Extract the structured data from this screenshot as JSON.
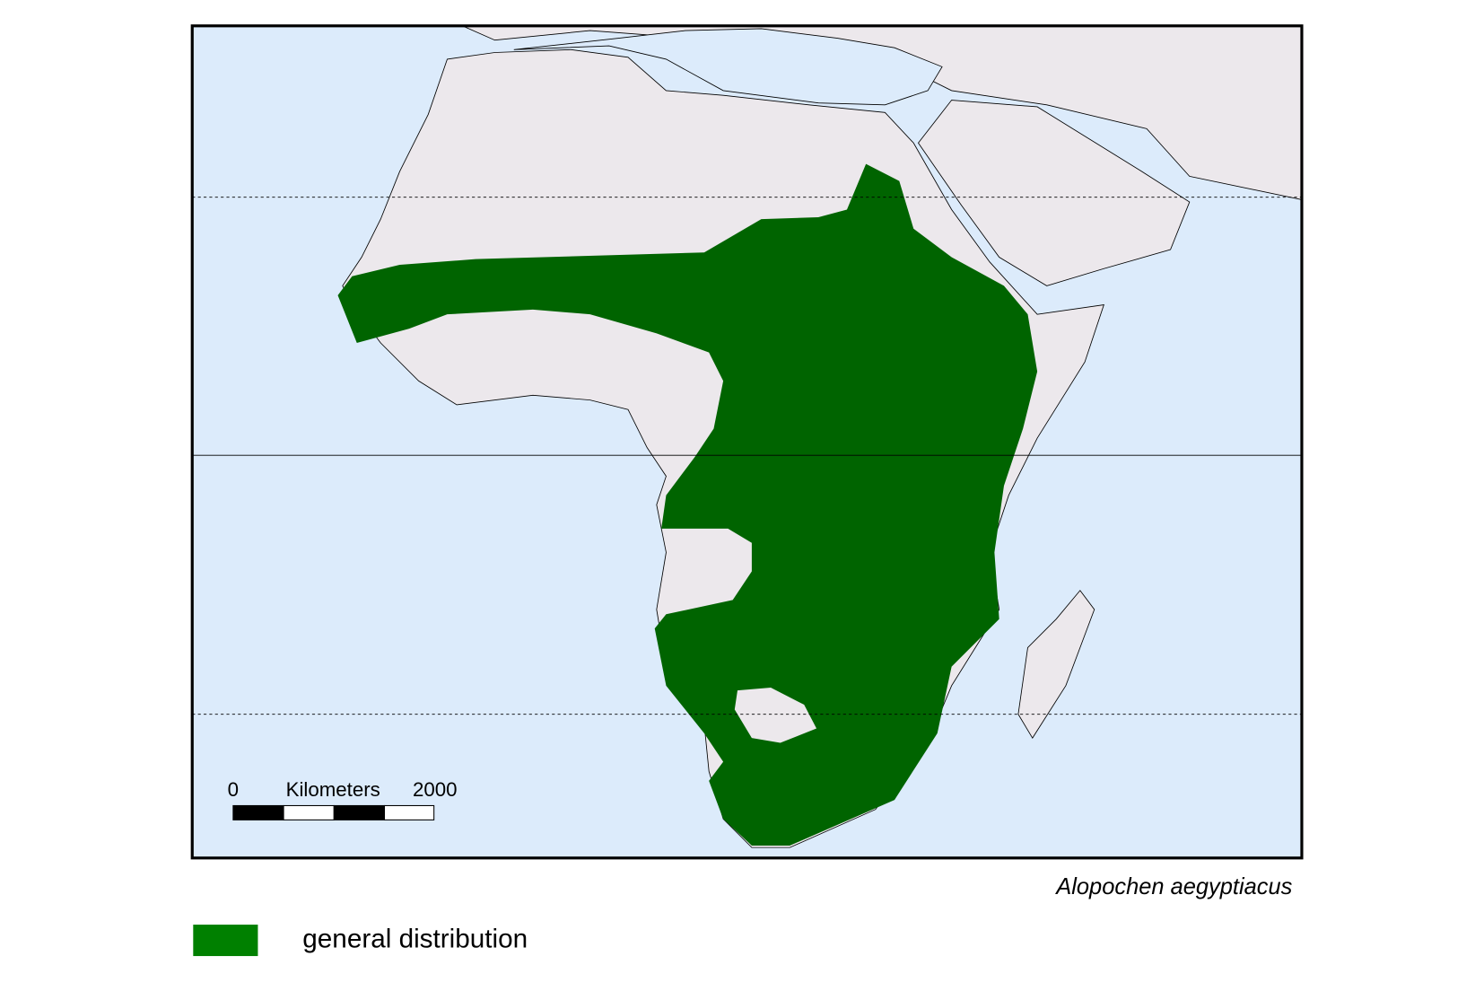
{
  "scale_bar": {
    "start": "0",
    "unit": "Kilometers",
    "end": "2000"
  },
  "caption": "Alopochen aegyptiacus",
  "legend": {
    "label": "general distribution"
  }
}
